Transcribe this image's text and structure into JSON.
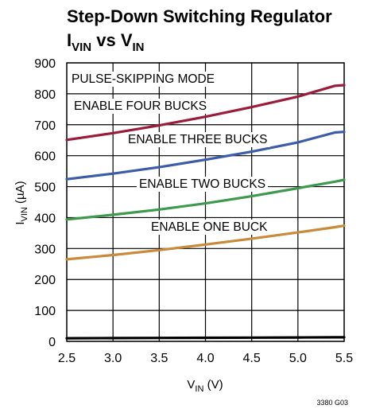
{
  "chart_data": {
    "type": "line",
    "title_line1": "Step-Down Switching Regulator",
    "title_line2": {
      "main": "I",
      "sub": "VIN",
      "mid": " vs V",
      "sub2": "IN"
    },
    "ylabel": {
      "main": "I",
      "sub": "VIN",
      "rest": " (µA)"
    },
    "xlabel": {
      "main": "V",
      "sub": "IN",
      "rest": " (V)"
    },
    "xlim": [
      2.5,
      5.5
    ],
    "ylim": [
      0,
      900
    ],
    "xticks": [
      "2.5",
      "3.0",
      "3.5",
      "4.0",
      "4.5",
      "5.0",
      "5.5"
    ],
    "yticks": [
      "0",
      "100",
      "200",
      "300",
      "400",
      "500",
      "600",
      "700",
      "800",
      "900"
    ],
    "grid": true,
    "x": [
      2.5,
      3.0,
      3.5,
      4.0,
      4.5,
      5.0,
      5.4,
      5.5
    ],
    "series": [
      {
        "name": "ENABLE FOUR BUCKS",
        "color": "#9b1b3a",
        "values": [
          651,
          673,
          698,
          726,
          757,
          791,
          826,
          828
        ]
      },
      {
        "name": "ENABLE THREE BUCKS",
        "color": "#3b5ca8",
        "values": [
          524,
          542,
          563,
          587,
          613,
          643,
          675,
          677
        ]
      },
      {
        "name": "ENABLE TWO BUCKS",
        "color": "#3d9a4c",
        "values": [
          394,
          409,
          426,
          446,
          469,
          495,
          516,
          522
        ]
      },
      {
        "name": "ENABLE ONE BUCK",
        "color": "#c98a3a",
        "values": [
          265,
          279,
          295,
          313,
          332,
          352,
          369,
          374
        ]
      },
      {
        "name": "PULSE-SKIPPING MODE",
        "color": "#000000",
        "values": [
          10,
          10.5,
          11,
          11.5,
          12,
          12.5,
          13,
          13
        ]
      }
    ],
    "annotations": [
      "PULSE-SKIPPING MODE",
      "ENABLE FOUR BUCKS",
      "ENABLE THREE BUCKS",
      "ENABLE TWO BUCKS",
      "ENABLE ONE BUCK"
    ],
    "footer_code": "3380 G03"
  }
}
